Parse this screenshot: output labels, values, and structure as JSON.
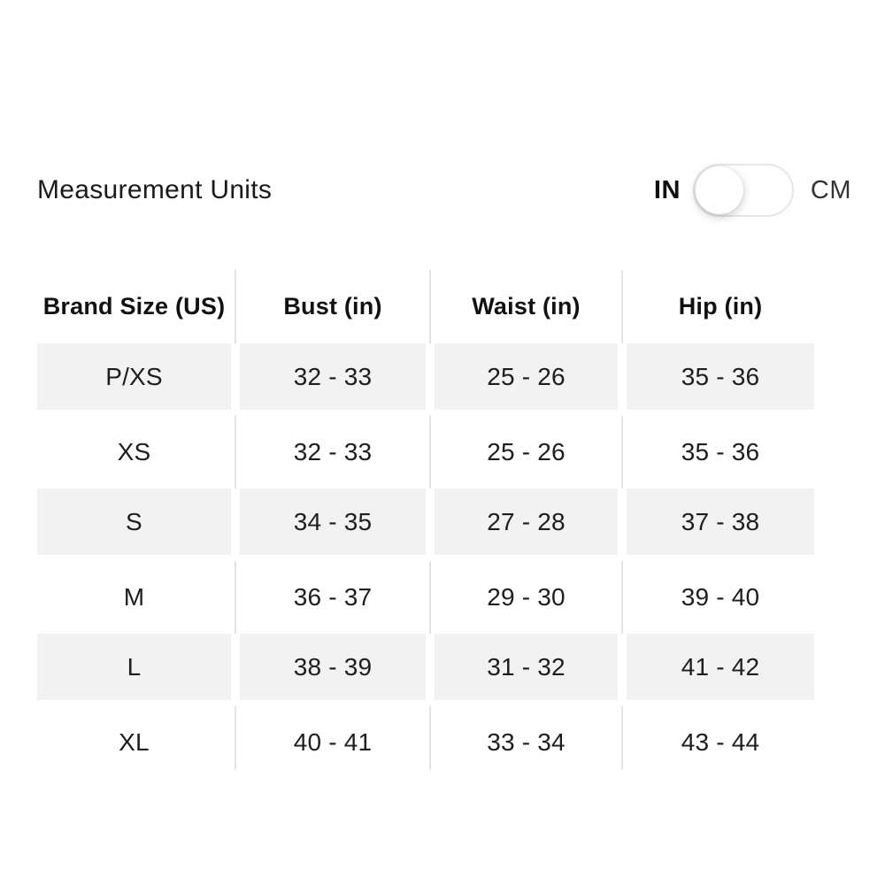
{
  "units": {
    "label": "Measurement Units",
    "toggle": {
      "left_label": "IN",
      "right_label": "CM",
      "selected": "IN"
    }
  },
  "table": {
    "columns": [
      "Brand Size (US)",
      "Bust (in)",
      "Waist (in)",
      "Hip (in)"
    ],
    "rows": [
      {
        "size": "P/XS",
        "bust": "32 - 33",
        "waist": "25 - 26",
        "hip": "35 - 36"
      },
      {
        "size": "XS",
        "bust": "32 - 33",
        "waist": "25 - 26",
        "hip": "35 - 36"
      },
      {
        "size": "S",
        "bust": "34 - 35",
        "waist": "27 - 28",
        "hip": "37 - 38"
      },
      {
        "size": "M",
        "bust": "36 - 37",
        "waist": "29 - 30",
        "hip": "39 - 40"
      },
      {
        "size": "L",
        "bust": "38 - 39",
        "waist": "31 - 32",
        "hip": "41 - 42"
      },
      {
        "size": "XL",
        "bust": "40 - 41",
        "waist": "33 - 34",
        "hip": "43 - 44"
      }
    ]
  },
  "colors": {
    "row_shade": "#f2f2f2",
    "divider": "#e4e4e4",
    "text": "#1e1e1e",
    "toggle_border": "#e7e7e7"
  }
}
